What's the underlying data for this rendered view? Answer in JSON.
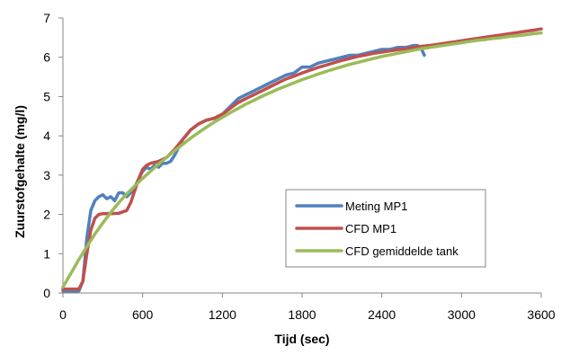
{
  "chart_data": {
    "type": "line",
    "title": "",
    "xlabel": "Tijd (sec)",
    "ylabel": "Zuurstofgehalte (mg/l)",
    "xlim": [
      0,
      3600
    ],
    "ylim": [
      0,
      7
    ],
    "x_ticks": [
      0,
      600,
      1200,
      1800,
      2400,
      3000,
      3600
    ],
    "y_ticks": [
      0,
      1,
      2,
      3,
      4,
      5,
      6,
      7
    ],
    "grid": false,
    "legend_position": "lower-right",
    "series": [
      {
        "name": "Meting MP1",
        "color": "#4f81bd",
        "x": [
          0,
          60,
          120,
          150,
          180,
          210,
          240,
          270,
          300,
          330,
          360,
          390,
          420,
          450,
          480,
          510,
          540,
          570,
          600,
          630,
          660,
          690,
          720,
          750,
          780,
          810,
          840,
          870,
          900,
          960,
          1020,
          1080,
          1140,
          1200,
          1260,
          1320,
          1380,
          1440,
          1500,
          1560,
          1620,
          1680,
          1740,
          1800,
          1860,
          1920,
          1980,
          2040,
          2100,
          2160,
          2220,
          2280,
          2340,
          2400,
          2460,
          2520,
          2580,
          2640,
          2670,
          2700,
          2720
        ],
        "y": [
          0.05,
          0.05,
          0.05,
          0.3,
          1.4,
          2.1,
          2.35,
          2.45,
          2.5,
          2.4,
          2.45,
          2.35,
          2.55,
          2.55,
          2.45,
          2.55,
          2.7,
          2.9,
          3.1,
          3.2,
          3.15,
          3.25,
          3.2,
          3.3,
          3.3,
          3.35,
          3.5,
          3.7,
          3.9,
          4.15,
          4.3,
          4.4,
          4.45,
          4.55,
          4.75,
          4.95,
          5.05,
          5.15,
          5.25,
          5.35,
          5.45,
          5.55,
          5.6,
          5.75,
          5.75,
          5.85,
          5.9,
          5.95,
          6.0,
          6.05,
          6.05,
          6.1,
          6.15,
          6.2,
          6.2,
          6.25,
          6.25,
          6.3,
          6.3,
          6.2,
          6.05
        ]
      },
      {
        "name": "CFD MP1",
        "color": "#c0504d",
        "x": [
          0,
          60,
          120,
          150,
          180,
          210,
          240,
          270,
          300,
          360,
          420,
          480,
          510,
          540,
          570,
          600,
          630,
          660,
          720,
          780,
          840,
          900,
          960,
          1020,
          1080,
          1140,
          1200,
          1260,
          1320,
          1380,
          1440,
          1500,
          1560,
          1620,
          1680,
          1740,
          1800,
          1860,
          1920,
          1980,
          2040,
          2100,
          2160,
          2220,
          2280,
          2340,
          2400,
          2460,
          2520,
          2580,
          2640,
          2700,
          2760,
          2820,
          2880,
          2940,
          3000,
          3060,
          3120,
          3180,
          3240,
          3300,
          3360,
          3420,
          3480,
          3540,
          3600
        ],
        "y": [
          0.1,
          0.1,
          0.1,
          0.3,
          1.0,
          1.6,
          1.9,
          2.0,
          2.02,
          2.02,
          2.03,
          2.1,
          2.3,
          2.6,
          2.9,
          3.15,
          3.25,
          3.3,
          3.35,
          3.45,
          3.65,
          3.9,
          4.15,
          4.3,
          4.4,
          4.45,
          4.55,
          4.7,
          4.85,
          4.95,
          5.05,
          5.15,
          5.25,
          5.35,
          5.45,
          5.52,
          5.6,
          5.67,
          5.74,
          5.8,
          5.86,
          5.92,
          5.97,
          6.02,
          6.06,
          6.1,
          6.13,
          6.16,
          6.19,
          6.22,
          6.25,
          6.28,
          6.3,
          6.33,
          6.36,
          6.39,
          6.42,
          6.45,
          6.48,
          6.51,
          6.54,
          6.57,
          6.6,
          6.63,
          6.66,
          6.69,
          6.72
        ]
      },
      {
        "name": "CFD gemiddelde tank",
        "color": "#9bbb59",
        "x": [
          0,
          60,
          120,
          180,
          240,
          300,
          360,
          420,
          480,
          540,
          600,
          660,
          720,
          780,
          840,
          900,
          960,
          1020,
          1080,
          1140,
          1200,
          1260,
          1320,
          1380,
          1440,
          1500,
          1560,
          1620,
          1680,
          1740,
          1800,
          1860,
          1920,
          1980,
          2040,
          2100,
          2160,
          2220,
          2280,
          2340,
          2400,
          2460,
          2520,
          2580,
          2640,
          2700,
          2760,
          2820,
          2880,
          2940,
          3000,
          3060,
          3120,
          3180,
          3240,
          3300,
          3360,
          3420,
          3480,
          3540,
          3600
        ],
        "y": [
          0.15,
          0.5,
          0.85,
          1.18,
          1.5,
          1.78,
          2.05,
          2.3,
          2.52,
          2.72,
          2.92,
          3.1,
          3.28,
          3.45,
          3.62,
          3.78,
          3.94,
          4.08,
          4.22,
          4.35,
          4.47,
          4.59,
          4.7,
          4.81,
          4.91,
          5.01,
          5.1,
          5.19,
          5.27,
          5.35,
          5.43,
          5.5,
          5.57,
          5.64,
          5.7,
          5.76,
          5.82,
          5.87,
          5.92,
          5.97,
          6.02,
          6.06,
          6.1,
          6.14,
          6.18,
          6.22,
          6.25,
          6.28,
          6.31,
          6.34,
          6.37,
          6.4,
          6.43,
          6.45,
          6.48,
          6.5,
          6.53,
          6.55,
          6.57,
          6.6,
          6.62
        ]
      }
    ]
  }
}
